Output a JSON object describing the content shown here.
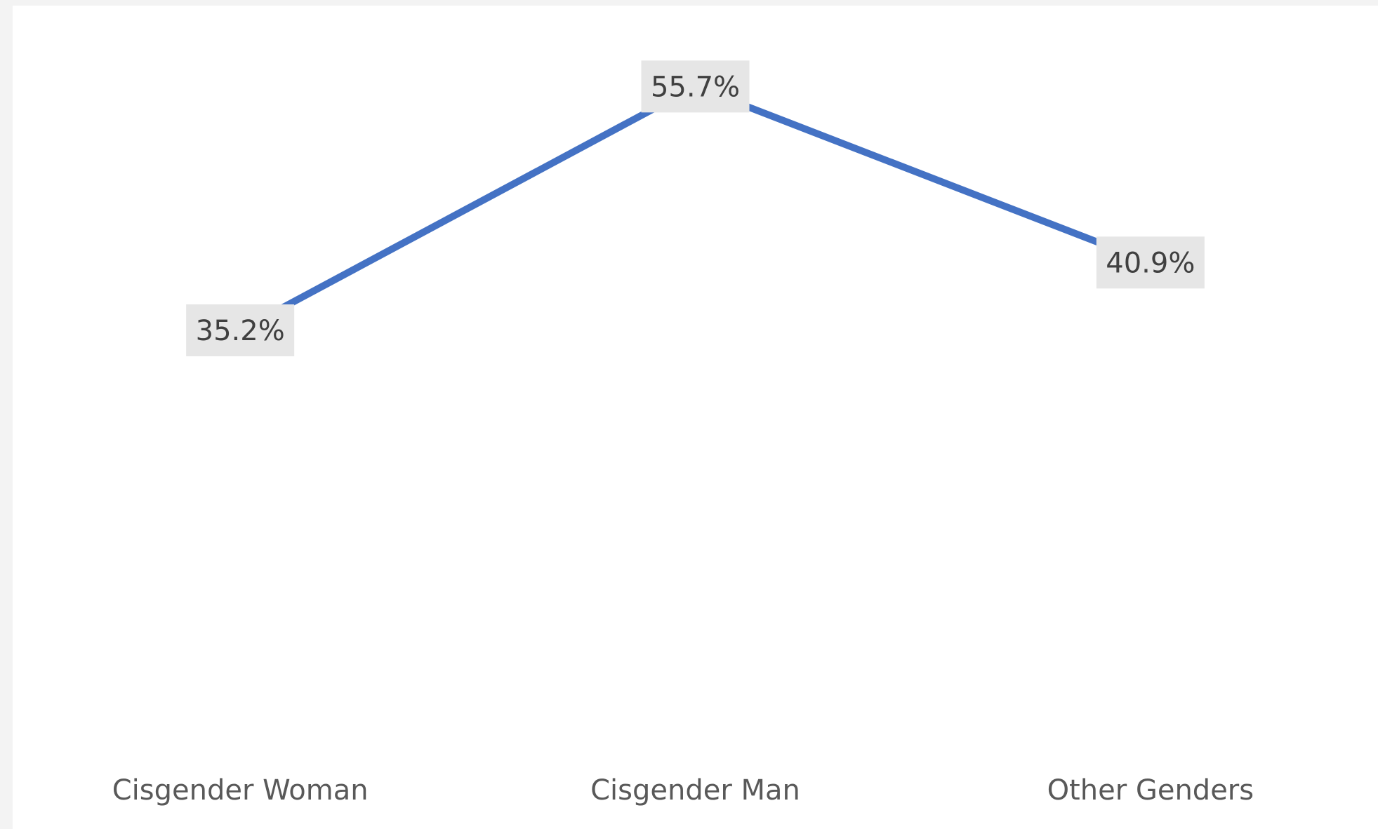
{
  "chart_data": {
    "type": "line",
    "title": "",
    "xlabel": "",
    "ylabel": "",
    "categories": [
      "Cisgender Woman",
      "Cisgender Man",
      "Other Genders"
    ],
    "series": [
      {
        "values": [
          35.2,
          55.7,
          40.9
        ],
        "labels": [
          "35.2%",
          "55.7%",
          "40.9%"
        ],
        "color": "#4472C4"
      }
    ],
    "ylim": [
      0,
      70
    ],
    "grid": false,
    "legend": "none"
  }
}
